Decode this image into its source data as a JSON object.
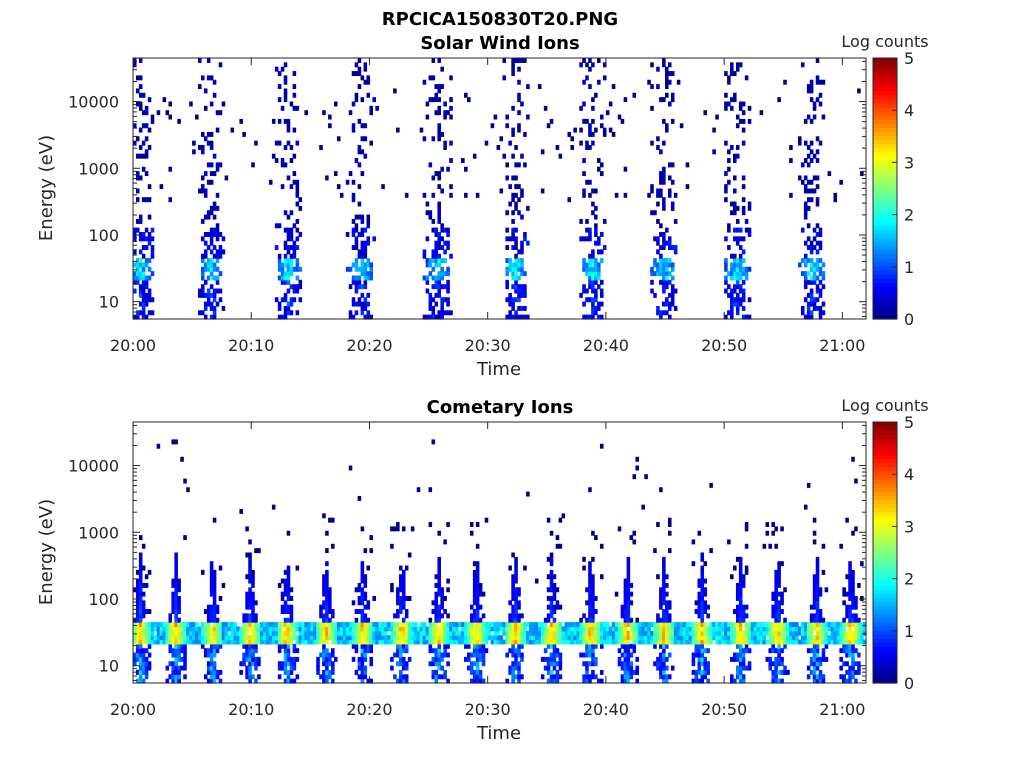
{
  "figure_title": "RPCICA150830T20.PNG",
  "colorbar": {
    "label": "Log counts",
    "min": 0,
    "max": 5,
    "ticks": [
      "0",
      "1",
      "2",
      "3",
      "4",
      "5"
    ],
    "colormap": "jet"
  },
  "chart_data": [
    {
      "type": "heatmap",
      "title": "Solar Wind Ions",
      "xlabel": "Time",
      "ylabel": "Energy (eV)",
      "x_tick_labels": [
        "20:00",
        "20:10",
        "20:20",
        "20:30",
        "20:40",
        "20:50",
        "21:00"
      ],
      "x_range_minutes": [
        0,
        62
      ],
      "y_tick_labels": [
        "10",
        "100",
        "1000",
        "10000"
      ],
      "y_scale": "log",
      "y_range_eV": [
        5.5,
        45000
      ],
      "colorbar_label": "Log counts",
      "z_range": [
        0,
        5
      ],
      "sweep_times_minutes": [
        0.5,
        6.5,
        13.0,
        19.2,
        25.7,
        32.3,
        38.8,
        44.8,
        51.0,
        57.3
      ],
      "peak_band_eV": [
        20,
        45
      ],
      "peak_log_counts": 2.2
    },
    {
      "type": "heatmap",
      "title": "Cometary Ions",
      "xlabel": "Time",
      "ylabel": "Energy (eV)",
      "x_tick_labels": [
        "20:00",
        "20:10",
        "20:20",
        "20:30",
        "20:40",
        "20:50",
        "21:00"
      ],
      "x_range_minutes": [
        0,
        62
      ],
      "y_tick_labels": [
        "10",
        "100",
        "1000",
        "10000"
      ],
      "y_scale": "log",
      "y_range_eV": [
        5.5,
        45000
      ],
      "colorbar_label": "Log counts",
      "z_range": [
        0,
        5
      ],
      "sweep_times_minutes": [
        0.5,
        3.5,
        6.6,
        9.8,
        12.9,
        16.2,
        19.3,
        22.6,
        25.7,
        28.9,
        32.2,
        35.3,
        38.6,
        41.7,
        44.8,
        48.0,
        51.3,
        54.4,
        57.7,
        60.6
      ],
      "peak_band_eV": [
        20,
        45
      ],
      "peak_log_counts": 3.8
    }
  ]
}
